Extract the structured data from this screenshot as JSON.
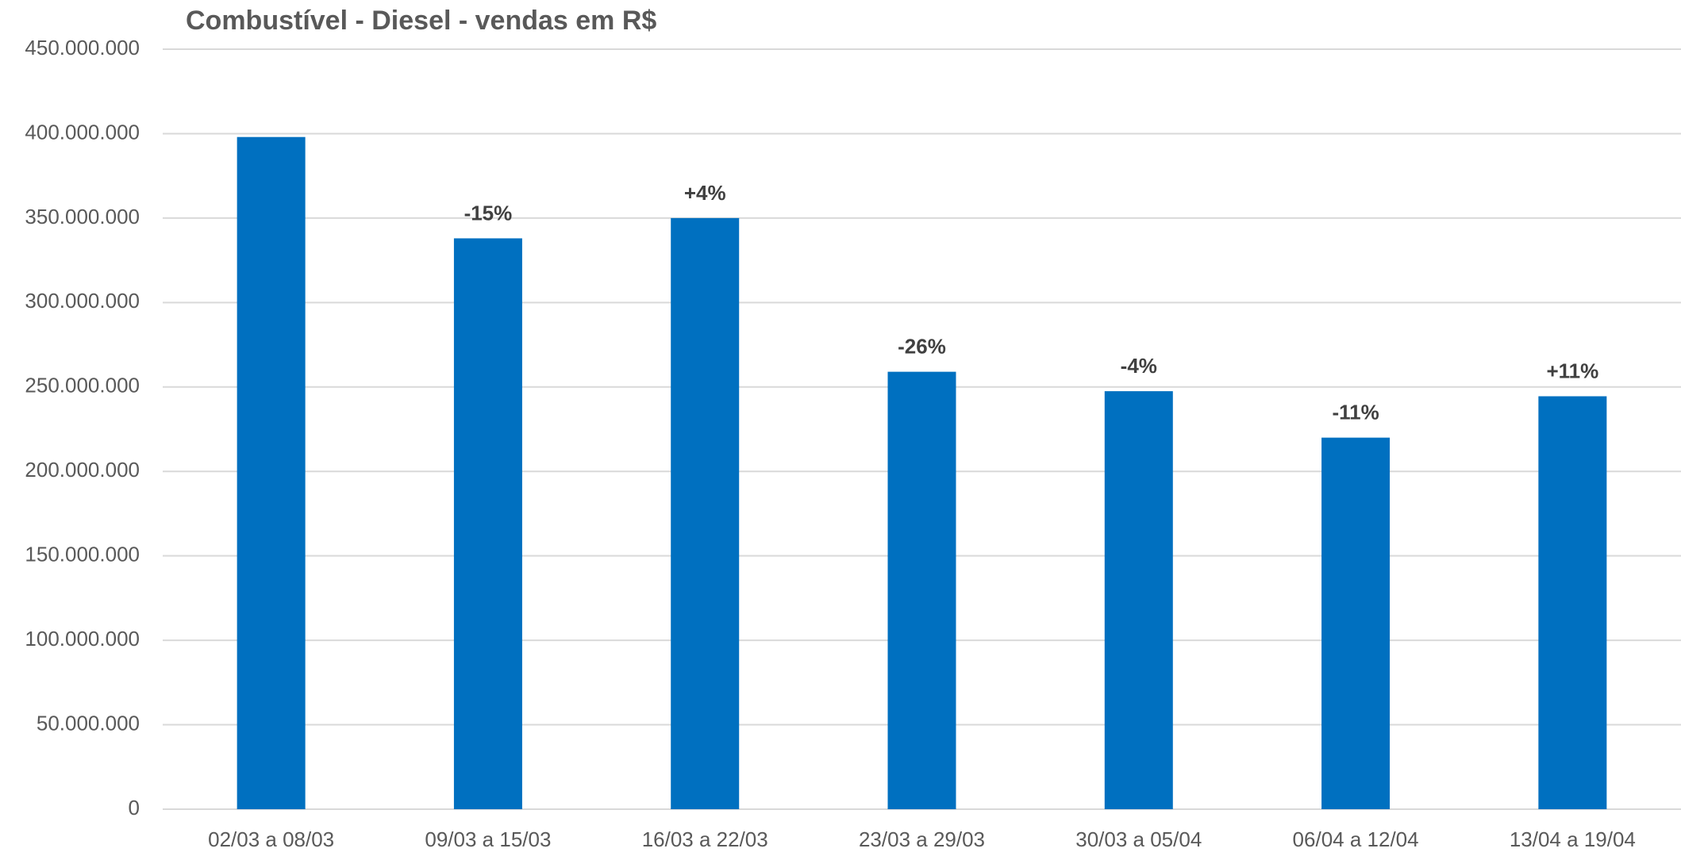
{
  "chart_data": {
    "type": "bar",
    "title": "Combustível - Diesel - vendas em R$",
    "categories": [
      "02/03 a 08/03",
      "09/03 a 15/03",
      "16/03 a 22/03",
      "23/03 a 29/03",
      "30/03 a 05/04",
      "06/04 a 12/04",
      "13/04 a 19/04"
    ],
    "values": [
      398000000,
      338000000,
      350000000,
      259000000,
      247500000,
      220000000,
      244500000
    ],
    "annotations": [
      null,
      "-15%",
      "+4%",
      "-26%",
      "-4%",
      "-11%",
      "+11%"
    ],
    "color": "#0070c0",
    "ylim": [
      0,
      450000000
    ],
    "yticks": [
      0,
      {
        "value": 50000000,
        "label": "50.000.000"
      },
      {
        "value": 100000000,
        "label": "100.000.000"
      },
      {
        "value": 150000000,
        "label": "150.000.000"
      },
      {
        "value": 200000000,
        "label": "200.000.000"
      },
      {
        "value": 250000000,
        "label": "250.000.000"
      },
      {
        "value": 300000000,
        "label": "300.000.000"
      },
      {
        "value": 350000000,
        "label": "350.000.000"
      },
      {
        "value": 400000000,
        "label": "400.000.000"
      },
      {
        "value": 450000000,
        "label": "450.000.000"
      }
    ],
    "grid": true
  }
}
